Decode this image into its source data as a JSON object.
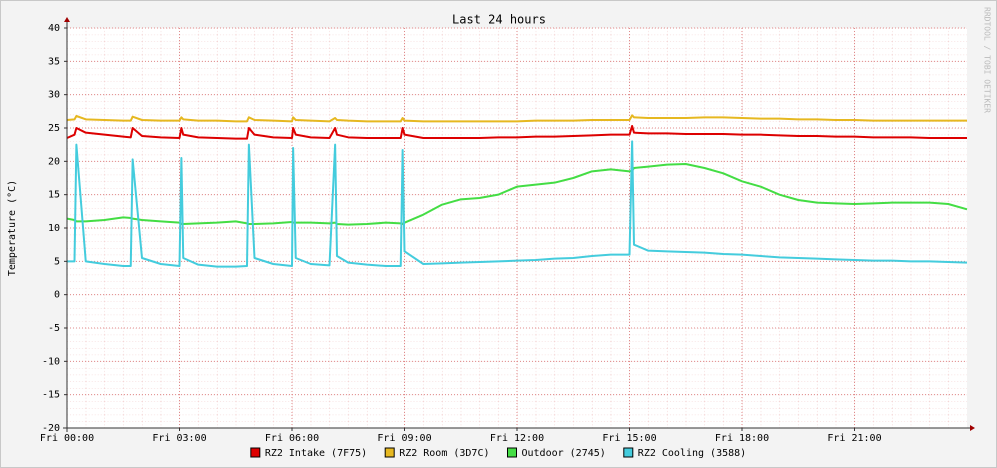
{
  "chart_data": {
    "type": "line",
    "title": "Last 24 hours",
    "y_label": "Temperature (°C)",
    "watermark": "RRDTOOL / TOBI OETIKER",
    "grid": true,
    "xlim": [
      0,
      24
    ],
    "xticks": [
      {
        "value": 0,
        "label": "Fri 00:00"
      },
      {
        "value": 3,
        "label": "Fri 03:00"
      },
      {
        "value": 6,
        "label": "Fri 06:00"
      },
      {
        "value": 9,
        "label": "Fri 09:00"
      },
      {
        "value": 12,
        "label": "Fri 12:00"
      },
      {
        "value": 15,
        "label": "Fri 15:00"
      },
      {
        "value": 18,
        "label": "Fri 18:00"
      },
      {
        "value": 21,
        "label": "Fri 21:00"
      }
    ],
    "ylim": [
      -20,
      40
    ],
    "yticks": [
      -20,
      -15,
      -10,
      -5,
      0,
      5,
      10,
      15,
      20,
      25,
      30,
      35,
      40
    ],
    "x": [
      0,
      0.2,
      0.25,
      0.5,
      1,
      1.5,
      1.7,
      1.75,
      2,
      2.5,
      3,
      3.05,
      3.1,
      3.5,
      4,
      4.5,
      4.8,
      4.85,
      5,
      5.5,
      6,
      6.03,
      6.1,
      6.5,
      7,
      7.15,
      7.2,
      7.5,
      8,
      8.5,
      8.9,
      8.95,
      9,
      9.5,
      10,
      10.5,
      11,
      11.5,
      12,
      12.5,
      13,
      13.5,
      14,
      14.5,
      15,
      15.07,
      15.12,
      15.5,
      16,
      16.5,
      17,
      17.5,
      18,
      18.5,
      19,
      19.5,
      20,
      20.5,
      21,
      21.5,
      22,
      22.5,
      23,
      23.5,
      24
    ],
    "series": [
      {
        "name": "RZ2 Intake (7F75)",
        "color": "#dd0000",
        "values": [
          23.5,
          24.0,
          25.0,
          24.3,
          24.0,
          23.7,
          23.6,
          25.0,
          23.8,
          23.6,
          23.5,
          25.0,
          24.0,
          23.6,
          23.5,
          23.4,
          23.4,
          25.0,
          24.0,
          23.6,
          23.5,
          25.0,
          24.0,
          23.6,
          23.5,
          25.0,
          24.0,
          23.6,
          23.5,
          23.5,
          23.5,
          25.0,
          24.0,
          23.5,
          23.5,
          23.5,
          23.5,
          23.6,
          23.6,
          23.7,
          23.7,
          23.8,
          23.9,
          24.0,
          24.0,
          25.3,
          24.3,
          24.2,
          24.2,
          24.1,
          24.1,
          24.1,
          24.0,
          24.0,
          23.9,
          23.8,
          23.8,
          23.7,
          23.7,
          23.6,
          23.6,
          23.6,
          23.5,
          23.5,
          23.5
        ]
      },
      {
        "name": "RZ2 Room (3D7C)",
        "color": "#e6b820",
        "values": [
          26.2,
          26.3,
          26.8,
          26.3,
          26.2,
          26.1,
          26.1,
          26.7,
          26.2,
          26.1,
          26.1,
          26.6,
          26.3,
          26.1,
          26.1,
          26.0,
          26.0,
          26.6,
          26.2,
          26.1,
          26.0,
          26.6,
          26.2,
          26.1,
          26.0,
          26.5,
          26.2,
          26.1,
          26.0,
          26.0,
          26.0,
          26.5,
          26.1,
          26.0,
          26.0,
          26.0,
          26.0,
          26.0,
          26.0,
          26.1,
          26.1,
          26.1,
          26.2,
          26.2,
          26.2,
          26.9,
          26.6,
          26.5,
          26.5,
          26.5,
          26.6,
          26.6,
          26.5,
          26.4,
          26.4,
          26.3,
          26.3,
          26.2,
          26.2,
          26.1,
          26.1,
          26.1,
          26.1,
          26.1,
          26.1
        ]
      },
      {
        "name": "Outdoor (2745)",
        "color": "#44dd44",
        "values": [
          11.4,
          11.2,
          11.0,
          11.0,
          11.2,
          11.6,
          11.5,
          11.4,
          11.2,
          11.0,
          10.8,
          10.6,
          10.6,
          10.7,
          10.8,
          11.0,
          10.7,
          10.6,
          10.6,
          10.7,
          10.9,
          10.8,
          10.8,
          10.8,
          10.7,
          10.8,
          10.6,
          10.5,
          10.6,
          10.8,
          10.7,
          10.6,
          10.8,
          12.0,
          13.5,
          14.3,
          14.5,
          15.0,
          16.2,
          16.5,
          16.8,
          17.5,
          18.5,
          18.8,
          18.5,
          18.6,
          19.0,
          19.2,
          19.5,
          19.6,
          19.0,
          18.2,
          17.0,
          16.2,
          15.0,
          14.2,
          13.8,
          13.7,
          13.6,
          13.7,
          13.8,
          13.8,
          13.8,
          13.6,
          12.8
        ]
      },
      {
        "name": "RZ2 Cooling (3588)",
        "color": "#44ccdd",
        "values": [
          5.0,
          5.0,
          22.5,
          5.0,
          4.6,
          4.3,
          4.3,
          20.3,
          5.5,
          4.6,
          4.3,
          20.5,
          5.5,
          4.5,
          4.2,
          4.2,
          4.3,
          22.5,
          5.5,
          4.6,
          4.3,
          22.0,
          5.5,
          4.6,
          4.4,
          22.5,
          5.8,
          4.8,
          4.5,
          4.3,
          4.3,
          21.7,
          6.5,
          4.6,
          4.7,
          4.8,
          4.9,
          5.0,
          5.1,
          5.2,
          5.4,
          5.5,
          5.8,
          6.0,
          6.0,
          23.0,
          7.5,
          6.6,
          6.5,
          6.4,
          6.3,
          6.1,
          6.0,
          5.8,
          5.6,
          5.5,
          5.4,
          5.3,
          5.2,
          5.1,
          5.1,
          5.0,
          5.0,
          4.9,
          4.8
        ]
      }
    ]
  }
}
